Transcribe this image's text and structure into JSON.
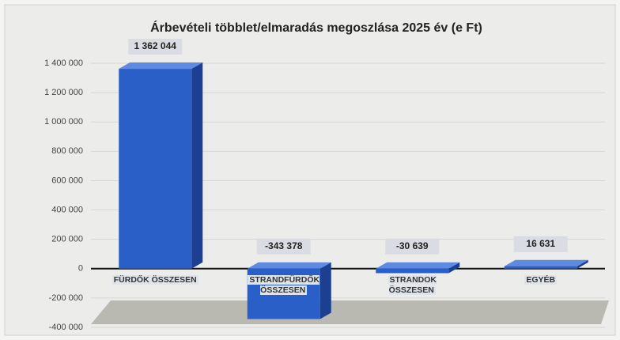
{
  "chart_data": {
    "type": "bar",
    "title": "Árbevételi többlet/elmaradás megoszlása 2025 év (e Ft)",
    "categories": [
      "FÜRDŐK ÖSSZESEN",
      "STRANDFÜRDŐK ÖSSZESEN",
      "STRANDOK ÖSSZESEN",
      "EGYÉB"
    ],
    "values": [
      1362044,
      -343378,
      -30639,
      16631
    ],
    "value_labels": [
      "1 362 044",
      "-343 378",
      "-30 639",
      "16 631"
    ],
    "color": "#2b5fc8",
    "ylim": [
      -400000,
      1400000
    ],
    "yticks": [
      {
        "value": -400000,
        "label": "-400 000"
      },
      {
        "value": -200000,
        "label": "-200 000"
      },
      0,
      {
        "value": 200000,
        "label": "200 000"
      },
      {
        "value": 400000,
        "label": "400 000"
      },
      {
        "value": 600000,
        "label": "600 000"
      },
      {
        "value": 800000,
        "label": "800 000"
      },
      {
        "value": 1000000,
        "label": "1 000 000"
      },
      {
        "value": 1200000,
        "label": "1 200 000"
      },
      {
        "value": 1400000,
        "label": "1 400 000"
      }
    ],
    "grid": true
  }
}
